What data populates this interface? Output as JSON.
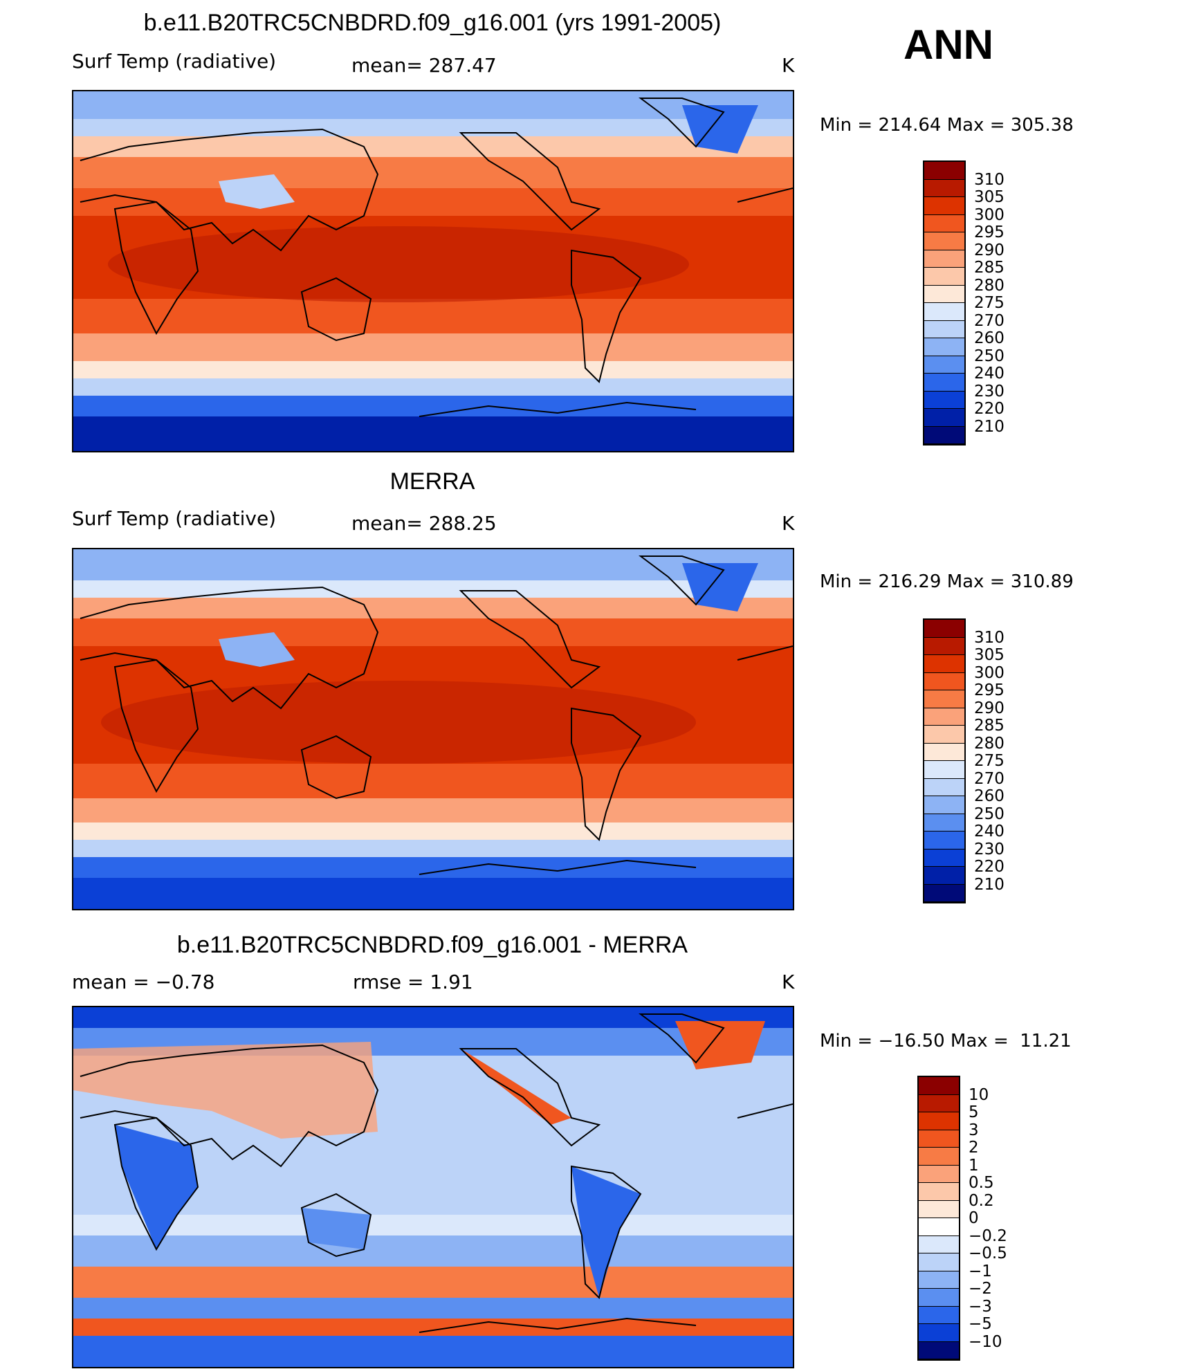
{
  "figure": {
    "season": "ANN",
    "panels": [
      {
        "title": "b.e11.B20TRC5CNBDRD.f09_g16.001 (yrs 1991-2005)",
        "left_label": "Surf Temp (radiative)",
        "center_label": "mean= 287.47",
        "units": "K",
        "minmax": "Min = 214.64 Max = 305.38",
        "kind": "abs"
      },
      {
        "title": "MERRA",
        "left_label": "Surf Temp (radiative)",
        "center_label": "mean= 288.25",
        "units": "K",
        "minmax": "Min = 216.29 Max = 310.89",
        "kind": "abs"
      },
      {
        "title": "b.e11.B20TRC5CNBDRD.f09_g16.001 - MERRA",
        "left_label": "mean =   −0.78",
        "center_label": "rmse =    1.91",
        "units": "K",
        "minmax": "Min = −16.50 Max =  11.21",
        "kind": "diff"
      }
    ],
    "colorbars": {
      "abs": {
        "levels": [
          "310",
          "305",
          "300",
          "295",
          "290",
          "285",
          "280",
          "275",
          "270",
          "260",
          "250",
          "240",
          "230",
          "220",
          "210"
        ],
        "colors": [
          "#8b0000",
          "#b81a00",
          "#dd3300",
          "#f0561f",
          "#f77b45",
          "#faa27a",
          "#fcc8aa",
          "#fde8d8",
          "#dbe8fb",
          "#bcd3f8",
          "#8db3f4",
          "#5b8ff0",
          "#2b66ea",
          "#0b40d6",
          "#0020a8",
          "#000a78"
        ]
      },
      "diff": {
        "levels": [
          "10",
          "5",
          "3",
          "2",
          "1",
          "0.5",
          "0.2",
          "0",
          "−0.2",
          "−0.5",
          "−1",
          "−2",
          "−3",
          "−5",
          "−10"
        ],
        "colors": [
          "#8b0000",
          "#b81a00",
          "#dd3300",
          "#f0561f",
          "#f77b45",
          "#faa27a",
          "#fcc8aa",
          "#fde8d8",
          "#ffffff",
          "#dbe8fb",
          "#bcd3f8",
          "#8db3f4",
          "#5b8ff0",
          "#2b66ea",
          "#0b40d6",
          "#000a78"
        ]
      }
    }
  },
  "chart_data": [
    {
      "type": "heatmap",
      "title": "b.e11.B20TRC5CNBDRD.f09_g16.001 (yrs 1991-2005)",
      "variable": "Surf Temp (radiative)",
      "units": "K",
      "mean": 287.47,
      "min": 214.64,
      "max": 305.38,
      "contour_levels": [
        210,
        220,
        230,
        240,
        250,
        260,
        270,
        275,
        280,
        285,
        290,
        295,
        300,
        305,
        310
      ]
    },
    {
      "type": "heatmap",
      "title": "MERRA",
      "variable": "Surf Temp (radiative)",
      "units": "K",
      "mean": 288.25,
      "min": 216.29,
      "max": 310.89,
      "contour_levels": [
        210,
        220,
        230,
        240,
        250,
        260,
        270,
        275,
        280,
        285,
        290,
        295,
        300,
        305,
        310
      ]
    },
    {
      "type": "heatmap",
      "title": "b.e11.B20TRC5CNBDRD.f09_g16.001 - MERRA",
      "units": "K",
      "mean": -0.78,
      "rmse": 1.91,
      "min": -16.5,
      "max": 11.21,
      "contour_levels": [
        -10,
        -5,
        -3,
        -2,
        -1,
        -0.5,
        -0.2,
        0,
        0.2,
        0.5,
        1,
        2,
        3,
        5,
        10
      ]
    }
  ]
}
